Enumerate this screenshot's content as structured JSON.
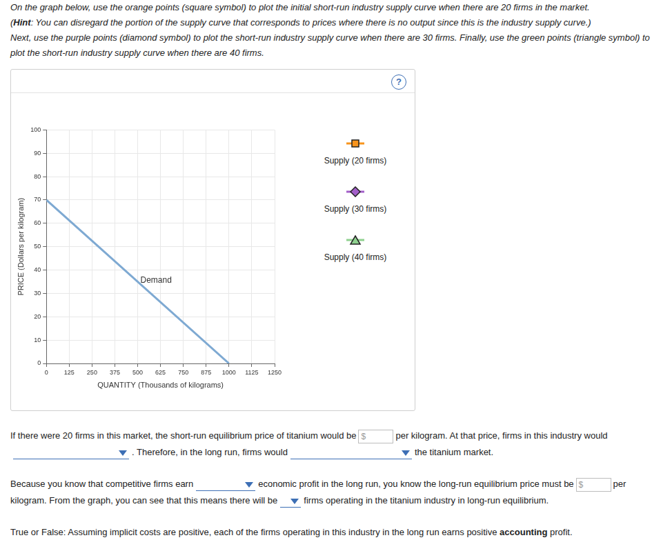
{
  "instructions": [
    [
      {
        "text": "On the graph below, use the orange points (square symbol) to plot the initial short-run industry supply curve when there are 20 firms in the market."
      }
    ],
    [
      {
        "text": "("
      },
      {
        "text": "Hint",
        "strong": true
      },
      {
        "text": ": You can disregard the portion of the supply curve that corresponds to prices where there is no output since this is the industry supply curve.)"
      }
    ],
    [
      {
        "text": "Next, use the purple points (diamond symbol) to plot the short-run industry supply curve when there are 30 firms. Finally, use the green points (triangle symbol) to plot the short-run industry supply curve when there are 40 firms."
      }
    ]
  ],
  "help_icon": "?",
  "chart_data": {
    "type": "line",
    "x_label": "QUANTITY (Thousands of kilograms)",
    "y_label": "PRICE (Dollars per kilogram)",
    "series": [
      {
        "name": "Demand",
        "color": "#7ea9d2",
        "x": [
          0,
          1000
        ],
        "values": [
          70,
          0
        ]
      }
    ],
    "xlim": [
      0,
      1250
    ],
    "xticks": [
      0,
      125,
      250,
      375,
      500,
      625,
      750,
      875,
      1000,
      1125,
      1250
    ],
    "ylim": [
      0,
      100
    ],
    "yticks": [
      0,
      10,
      20,
      30,
      40,
      50,
      60,
      70,
      80,
      90,
      100
    ],
    "grid": true
  },
  "palette": [
    {
      "label": "Supply (20 firms)",
      "color": "#f7941d",
      "marker": "square"
    },
    {
      "label": "Supply (30 firms)",
      "color": "#a35fc9",
      "marker": "diamond"
    },
    {
      "label": "Supply (40 firms)",
      "color": "#8fd18f",
      "marker": "triangle"
    }
  ],
  "questions": [
    [
      {
        "text": "If there were 20 firms in this market, the short-run equilibrium price of titanium would be"
      },
      {
        "input": "$"
      },
      {
        "text": "per kilogram. At that price, firms in this industry would"
      },
      {
        "dropdown": true
      },
      {
        "text": ". Therefore, in the long run, firms would"
      },
      {
        "dropdown": true
      },
      {
        "text": "the titanium market."
      }
    ],
    [
      {
        "text": "Because you know that competitive firms earn"
      },
      {
        "dropdown": true
      },
      {
        "text": "economic profit in the long run, you know the long-run equilibrium price must be"
      },
      {
        "input": "$"
      },
      {
        "text": "per kilogram. From the graph, you can see that this means there will be"
      },
      {
        "dropdown": true
      },
      {
        "text": "firms operating in the titanium industry in long-run equilibrium."
      }
    ],
    [
      {
        "text": "True or False: Assuming implicit costs are positive, each of the firms operating in this industry in the long run earns positive"
      },
      {
        "text": "accounting",
        "strong": true
      },
      {
        "text": "profit."
      }
    ]
  ]
}
